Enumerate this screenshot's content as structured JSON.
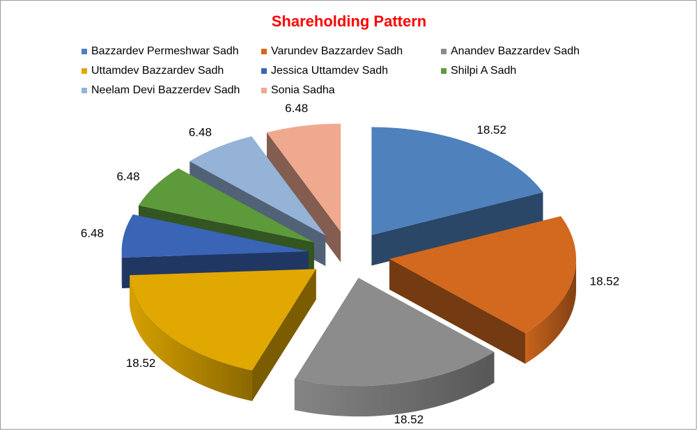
{
  "chart_data": {
    "type": "pie",
    "title": "Shareholding Pattern",
    "legend_position": "top",
    "exploded": true,
    "style": "3d",
    "slices": [
      {
        "name": "Bazzardev Permeshwar Sadh",
        "value": 18.52,
        "label": "18.52",
        "color": "#4f81bd"
      },
      {
        "name": "Varundev Bazzardev Sadh",
        "value": 18.52,
        "label": "18.52",
        "color": "#d2691e"
      },
      {
        "name": "Anandev Bazzardev Sadh",
        "value": 18.52,
        "label": "18.52",
        "color": "#8c8c8c"
      },
      {
        "name": "Uttamdev Bazzardev Sadh",
        "value": 18.52,
        "label": "18.52",
        "color": "#e0a800"
      },
      {
        "name": "Jessica Uttamdev Sadh",
        "value": 6.48,
        "label": "6.48",
        "color": "#3a64b5"
      },
      {
        "name": "Shilpi A Sadh",
        "value": 6.48,
        "label": "6.48",
        "color": "#5d9a3c"
      },
      {
        "name": "Neelam Devi Bazzerdev Sadh",
        "value": 6.48,
        "label": "6.48",
        "color": "#95b3d7"
      },
      {
        "name": "Sonia Sadha",
        "value": 6.48,
        "label": "6.48",
        "color": "#efa98f"
      }
    ]
  }
}
